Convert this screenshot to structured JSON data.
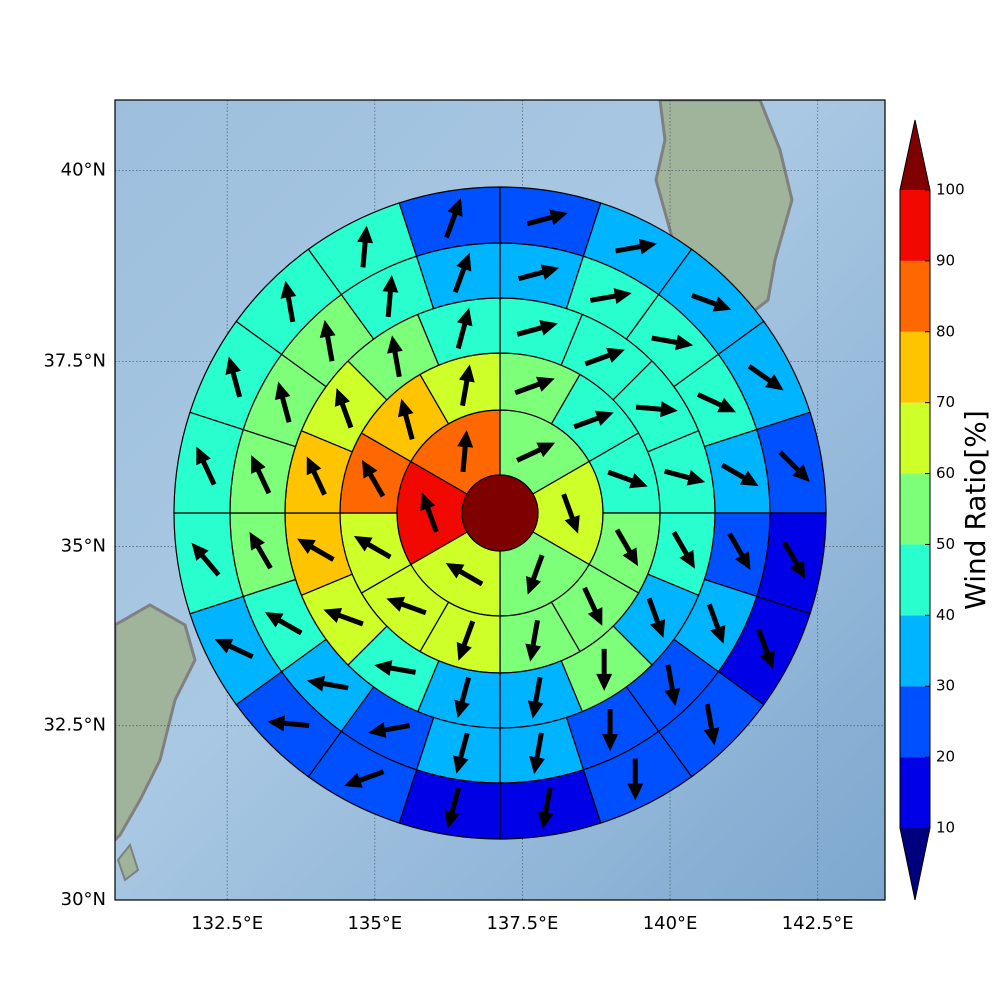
{
  "chart_data": {
    "type": "map",
    "xlim": [
      130.6,
      143.64
    ],
    "ylim": [
      30,
      40.9
    ],
    "xticks": [
      {
        "value": 132.5,
        "label": "132.5°E"
      },
      {
        "value": 135,
        "label": "135°E"
      },
      {
        "value": 137.5,
        "label": "137.5°E"
      },
      {
        "value": 140,
        "label": "140°E"
      },
      {
        "value": 142.5,
        "label": "142.5°E"
      }
    ],
    "yticks": [
      {
        "value": 30,
        "label": "30°N"
      },
      {
        "value": 32.5,
        "label": "32.5°N"
      },
      {
        "value": 35,
        "label": "35°N"
      },
      {
        "value": 37.5,
        "label": "37.5°N"
      },
      {
        "value": 40,
        "label": "40°N"
      }
    ],
    "grid": true,
    "center_value": 100,
    "rings": [
      {
        "values": [
          55,
          65,
          55,
          65,
          95,
          85
        ],
        "directions": [
          65,
          160,
          200,
          300,
          340,
          5
        ]
      },
      {
        "values": [
          55,
          45,
          45,
          55,
          55,
          55,
          65,
          65,
          65,
          85,
          75,
          65
        ],
        "directions": [
          70,
          70,
          110,
          150,
          155,
          190,
          200,
          290,
          300,
          330,
          345,
          10
        ]
      },
      {
        "values": [
          45,
          45,
          45,
          45,
          45,
          35,
          55,
          35,
          35,
          45,
          65,
          75,
          75,
          65,
          55,
          45
        ],
        "directions": [
          75,
          70,
          95,
          105,
          150,
          160,
          180,
          190,
          195,
          280,
          290,
          300,
          335,
          340,
          350,
          15
        ]
      },
      {
        "values": [
          35,
          45,
          45,
          45,
          35,
          25,
          35,
          25,
          25,
          35,
          35,
          25,
          35,
          45,
          55,
          55,
          55,
          55,
          45,
          35
        ],
        "directions": [
          75,
          80,
          100,
          115,
          120,
          150,
          160,
          170,
          180,
          190,
          195,
          260,
          280,
          300,
          330,
          335,
          345,
          350,
          5,
          20
        ]
      },
      {
        "values": [
          25,
          35,
          35,
          35,
          25,
          15,
          15,
          25,
          25,
          15,
          15,
          25,
          25,
          35,
          45,
          45,
          45,
          45,
          45,
          25
        ],
        "directions": [
          75,
          80,
          110,
          125,
          135,
          150,
          160,
          170,
          180,
          190,
          195,
          250,
          275,
          295,
          320,
          335,
          345,
          350,
          5,
          20
        ]
      }
    ],
    "colorbar": {
      "label": "Wind Ratio[%]",
      "levels": [
        10,
        20,
        30,
        40,
        50,
        60,
        70,
        80,
        90,
        100
      ],
      "colors": [
        "#0000e6",
        "#0050ff",
        "#00b4ff",
        "#29ffce",
        "#7dff7a",
        "#ceff29",
        "#ffc400",
        "#ff6800",
        "#f10800"
      ],
      "under_color": "#00007f",
      "over_color": "#7f0000"
    }
  }
}
